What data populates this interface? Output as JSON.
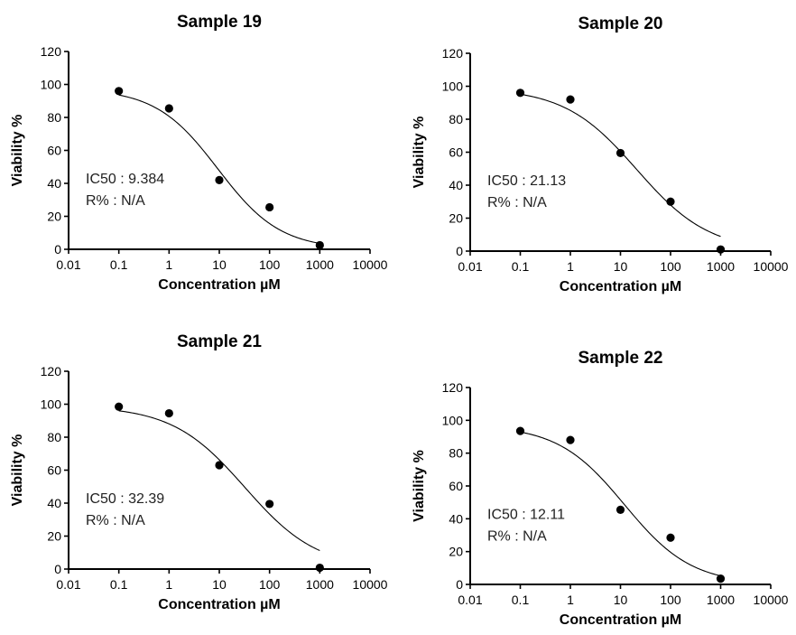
{
  "chart_data": [
    {
      "type": "scatter",
      "title": "Sample 19",
      "xlabel": "Concentration µM",
      "ylabel": "Viability %",
      "x_scale": "log",
      "xlim": [
        0.01,
        10000
      ],
      "ylim": [
        0,
        120
      ],
      "x_ticks": [
        "0.01",
        "0.1",
        "1",
        "10",
        "100",
        "1000",
        "10000"
      ],
      "y_ticks": [
        "0",
        "20",
        "40",
        "60",
        "80",
        "100",
        "120"
      ],
      "x": [
        0.1,
        1,
        10,
        100,
        1000
      ],
      "y": [
        96,
        85.5,
        42,
        25.5,
        2.5
      ],
      "fit_curve": {
        "top": 97.5,
        "bottom": 0,
        "ic50": 9.384,
        "hill_slope": 0.7
      },
      "annotations": [
        "IC50 : 9.384",
        "R% : N/A"
      ]
    },
    {
      "type": "scatter",
      "title": "Sample 20",
      "xlabel": "Concentration µM",
      "ylabel": "Viability %",
      "x_scale": "log",
      "xlim": [
        0.01,
        10000
      ],
      "ylim": [
        0,
        120
      ],
      "x_ticks": [
        "0.01",
        "0.1",
        "1",
        "10",
        "100",
        "1000",
        "10000"
      ],
      "y_ticks": [
        "0",
        "20",
        "40",
        "60",
        "80",
        "100",
        "120"
      ],
      "x": [
        0.1,
        1,
        10,
        100,
        1000
      ],
      "y": [
        96,
        92,
        59.5,
        30,
        1
      ],
      "fit_curve": {
        "top": 99,
        "bottom": 0,
        "ic50": 21.13,
        "hill_slope": 0.6
      },
      "annotations": [
        "IC50 : 21.13",
        "R% : N/A"
      ]
    },
    {
      "type": "scatter",
      "title": "Sample 21",
      "xlabel": "Concentration µM",
      "ylabel": "Viability %",
      "x_scale": "log",
      "xlim": [
        0.01,
        10000
      ],
      "ylim": [
        0,
        120
      ],
      "x_ticks": [
        "0.01",
        "0.1",
        "1",
        "10",
        "100",
        "1000",
        "10000"
      ],
      "y_ticks": [
        "0",
        "20",
        "40",
        "60",
        "80",
        "100",
        "120"
      ],
      "x": [
        0.1,
        1,
        10,
        100,
        1000
      ],
      "y": [
        98.5,
        94.5,
        63,
        39.5,
        0.8
      ],
      "fit_curve": {
        "top": 99,
        "bottom": 0,
        "ic50": 32.39,
        "hill_slope": 0.6
      },
      "annotations": [
        "IC50 : 32.39",
        "R% : N/A"
      ]
    },
    {
      "type": "scatter",
      "title": "Sample 22",
      "xlabel": "Concentration µM",
      "ylabel": "Viability %",
      "x_scale": "log",
      "xlim": [
        0.01,
        10000
      ],
      "ylim": [
        0,
        120
      ],
      "x_ticks": [
        "0.01",
        "0.1",
        "1",
        "10",
        "100",
        "1000",
        "10000"
      ],
      "y_ticks": [
        "0",
        "20",
        "40",
        "60",
        "80",
        "100",
        "120"
      ],
      "x": [
        0.1,
        1,
        10,
        100,
        1000
      ],
      "y": [
        93.5,
        88,
        45.5,
        28.5,
        3.5
      ],
      "fit_curve": {
        "top": 97,
        "bottom": 0,
        "ic50": 12.11,
        "hill_slope": 0.65
      },
      "annotations": [
        "IC50 : 12.11",
        "R% : N/A"
      ]
    }
  ]
}
